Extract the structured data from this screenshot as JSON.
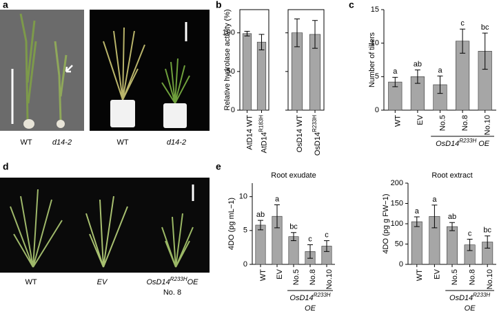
{
  "panel_labels": [
    "a",
    "b",
    "c",
    "d",
    "e"
  ],
  "photo_captions": {
    "a": [
      "WT",
      "d14-2",
      "WT",
      "d14-2"
    ],
    "d": {
      "wt": "WT",
      "ev": "EV",
      "line": {
        "label": "OsD14",
        "superscript": "R233H",
        "suffix": "OE"
      },
      "number": "No. 8"
    }
  },
  "chart_data": [
    {
      "type": "bar",
      "y_label": "Relative hydrolase activity (%)",
      "categories": [
        "AtD14 WT",
        "AtD14"
      ],
      "category_superscripts": [
        null,
        "R183H"
      ],
      "values": [
        99,
        88
      ],
      "errors": [
        3,
        10
      ],
      "color": "#a6a6a6",
      "ylim": [
        0,
        130
      ],
      "yticks": [
        0,
        50,
        100
      ],
      "tick_labels": true,
      "frame": true
    },
    {
      "type": "bar",
      "categories": [
        "OsD14 WT",
        "OsD14"
      ],
      "category_superscripts": [
        null,
        "R233H"
      ],
      "values": [
        100,
        98
      ],
      "errors": [
        18,
        18
      ],
      "color": "#a6a6a6",
      "ylim": [
        0,
        130
      ],
      "yticks": [
        0,
        50,
        100
      ],
      "tick_labels": false,
      "frame": true
    },
    {
      "type": "bar",
      "y_label": "Number of tillers",
      "categories": [
        "WT",
        "EV",
        "No.5",
        "No.8",
        "No.10"
      ],
      "values": [
        4.2,
        5,
        3.8,
        10.3,
        8.8
      ],
      "errors": [
        0.7,
        1,
        1.3,
        1.8,
        2.7
      ],
      "letters": [
        "a",
        "ab",
        "a",
        "c",
        "bc"
      ],
      "group": {
        "label": "OsD14",
        "superscript": "R233H",
        "suffix": "OE"
      },
      "color": "#a6a6a6",
      "ylim": [
        0,
        15
      ],
      "yticks": [
        0,
        5,
        10,
        15
      ],
      "tick_labels": true,
      "frame": false
    },
    {
      "type": "bar",
      "title": "Root exudate",
      "y_label": "4DO (pg mL−1)",
      "categories": [
        "WT",
        "EV",
        "No.5",
        "No.8",
        "No.10"
      ],
      "values": [
        5.8,
        7.1,
        4.1,
        1.9,
        2.7
      ],
      "errors": [
        0.7,
        1.7,
        0.6,
        1.0,
        0.8
      ],
      "letters": [
        "ab",
        "a",
        "bc",
        "c",
        "c"
      ],
      "group": {
        "label": "OsD14",
        "superscript": "R233H",
        "suffix": "OE"
      },
      "color": "#a6a6a6",
      "ylim": [
        0,
        12
      ],
      "yticks": [
        0,
        5,
        10
      ],
      "tick_labels": true,
      "frame": false
    },
    {
      "type": "bar",
      "title": "Root extract",
      "y_label": "4DO (pg g FW−1)",
      "categories": [
        "WT",
        "EV",
        "No.5",
        "No.8",
        "No.10"
      ],
      "values": [
        105,
        118,
        93,
        48,
        55
      ],
      "errors": [
        12,
        28,
        10,
        14,
        15
      ],
      "letters": [
        "a",
        "a",
        "ab",
        "c",
        "bc"
      ],
      "group": {
        "label": "OsD14",
        "superscript": "R233H",
        "suffix": "OE"
      },
      "color": "#a6a6a6",
      "ylim": [
        0,
        200
      ],
      "yticks": [
        0,
        50,
        100,
        150,
        200
      ],
      "tick_labels": true,
      "frame": false
    }
  ]
}
